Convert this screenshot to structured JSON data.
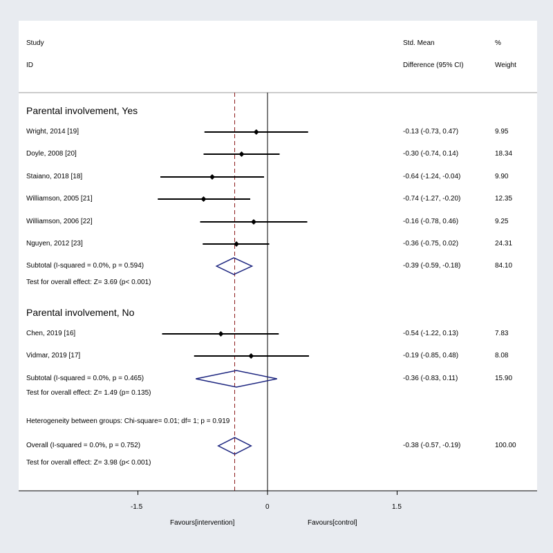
{
  "chart_data": {
    "type": "forest",
    "headers": {
      "study": "Study",
      "id": "ID",
      "smd_line1": "Std. Mean",
      "smd_line2": "Difference (95% CI)",
      "weight_line1": "%",
      "weight_line2": "Weight"
    },
    "groups": [
      {
        "name": "Parental involvement, Yes",
        "studies": [
          {
            "label": "Wright, 2014 [19]",
            "est": -0.13,
            "lo": -0.73,
            "hi": 0.47,
            "ci_text": "-0.13 (-0.73, 0.47)",
            "weight": "9.95"
          },
          {
            "label": "Doyle, 2008 [20]",
            "est": -0.3,
            "lo": -0.74,
            "hi": 0.14,
            "ci_text": "-0.30 (-0.74, 0.14)",
            "weight": "18.34"
          },
          {
            "label": "Staiano, 2018 [18]",
            "est": -0.64,
            "lo": -1.24,
            "hi": -0.04,
            "ci_text": "-0.64 (-1.24, -0.04)",
            "weight": "9.90"
          },
          {
            "label": "Williamson, 2005 [21]",
            "est": -0.74,
            "lo": -1.27,
            "hi": -0.2,
            "ci_text": "-0.74 (-1.27, -0.20)",
            "weight": "12.35"
          },
          {
            "label": "Williamson, 2006 [22]",
            "est": -0.16,
            "lo": -0.78,
            "hi": 0.46,
            "ci_text": "-0.16 (-0.78, 0.46)",
            "weight": "9.25"
          },
          {
            "label": "Nguyen, 2012 [23]",
            "est": -0.36,
            "lo": -0.75,
            "hi": 0.02,
            "ci_text": "-0.36 (-0.75, 0.02)",
            "weight": "24.31"
          }
        ],
        "subtotal": {
          "label": "Subtotal  (I-squared = 0.0%, p = 0.594)",
          "est": -0.39,
          "lo": -0.59,
          "hi": -0.18,
          "ci_text": "-0.39 (-0.59, -0.18)",
          "weight": "84.10"
        },
        "test": "Test for overall effect: Z= 3.69 (p< 0.001)"
      },
      {
        "name": "Parental involvement, No",
        "studies": [
          {
            "label": "Chen, 2019 [16]",
            "est": -0.54,
            "lo": -1.22,
            "hi": 0.13,
            "ci_text": "-0.54 (-1.22, 0.13)",
            "weight": "7.83"
          },
          {
            "label": "Vidmar, 2019 [17]",
            "est": -0.19,
            "lo": -0.85,
            "hi": 0.48,
            "ci_text": "-0.19 (-0.85, 0.48)",
            "weight": "8.08"
          }
        ],
        "subtotal": {
          "label": "Subtotal  (I-squared = 0.0%, p = 0.465)",
          "est": -0.36,
          "lo": -0.83,
          "hi": 0.11,
          "ci_text": "-0.36 (-0.83, 0.11)",
          "weight": "15.90"
        },
        "test": "Test for overall effect: Z= 1.49 (p= 0.135)"
      }
    ],
    "heterogeneity": "Heterogeneity between groups: Chi-square= 0.01; df= 1; p = 0.919",
    "overall": {
      "label": "Overall  (I-squared = 0.0%, p = 0.752)",
      "est": -0.38,
      "lo": -0.57,
      "hi": -0.19,
      "ci_text": "-0.38 (-0.57, -0.19)",
      "weight": "100.00"
    },
    "overall_test": "Test for overall effect: Z= 3.98 (p< 0.001)",
    "x_ticks": [
      -1.5,
      0,
      1.5
    ],
    "x_tick_labels": [
      "-1.5",
      "0",
      "1.5"
    ],
    "favours_left": "Favours[intervention]",
    "favours_right": "Favours[control]",
    "colors": {
      "diamond": "#1a237e",
      "reference_line": "#8b1a1a",
      "background": "#e8ebf0",
      "plot": "#ffffff"
    }
  }
}
